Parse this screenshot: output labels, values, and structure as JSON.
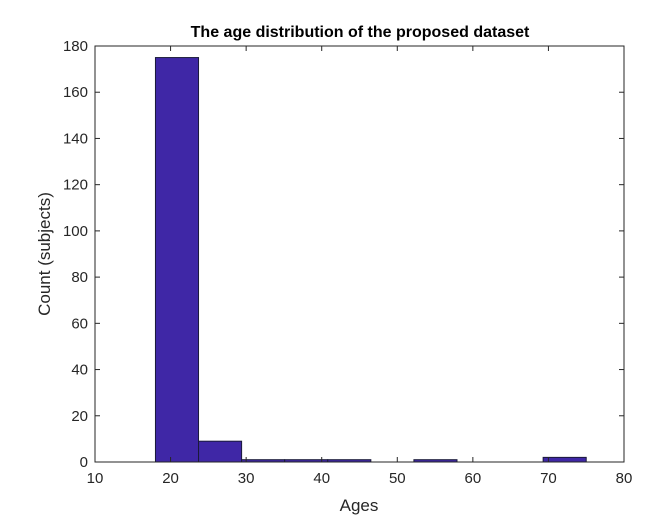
{
  "chart_data": {
    "type": "bar",
    "title": "The age distribution of the proposed dataset",
    "xlabel": "Ages",
    "ylabel": "Count (subjects)",
    "xlim": [
      10,
      80
    ],
    "ylim": [
      0,
      180
    ],
    "xticks": [
      10,
      20,
      30,
      40,
      50,
      60,
      70,
      80
    ],
    "yticks": [
      0,
      20,
      40,
      60,
      80,
      100,
      120,
      140,
      160,
      180
    ],
    "grid": false,
    "bins": [
      {
        "x0": 18.0,
        "x1": 23.7,
        "count": 175
      },
      {
        "x0": 23.7,
        "x1": 29.4,
        "count": 9
      },
      {
        "x0": 29.4,
        "x1": 35.1,
        "count": 1
      },
      {
        "x0": 35.1,
        "x1": 40.8,
        "count": 1
      },
      {
        "x0": 40.8,
        "x1": 46.5,
        "count": 1
      },
      {
        "x0": 46.5,
        "x1": 52.2,
        "count": 0
      },
      {
        "x0": 52.2,
        "x1": 57.9,
        "count": 1
      },
      {
        "x0": 57.9,
        "x1": 63.6,
        "count": 0
      },
      {
        "x0": 63.6,
        "x1": 69.3,
        "count": 0
      },
      {
        "x0": 69.3,
        "x1": 75.0,
        "count": 2
      }
    ],
    "colors": {
      "bar": "#3f27a6",
      "bar_edge": "#1a1a3a",
      "axis": "#262626"
    }
  }
}
